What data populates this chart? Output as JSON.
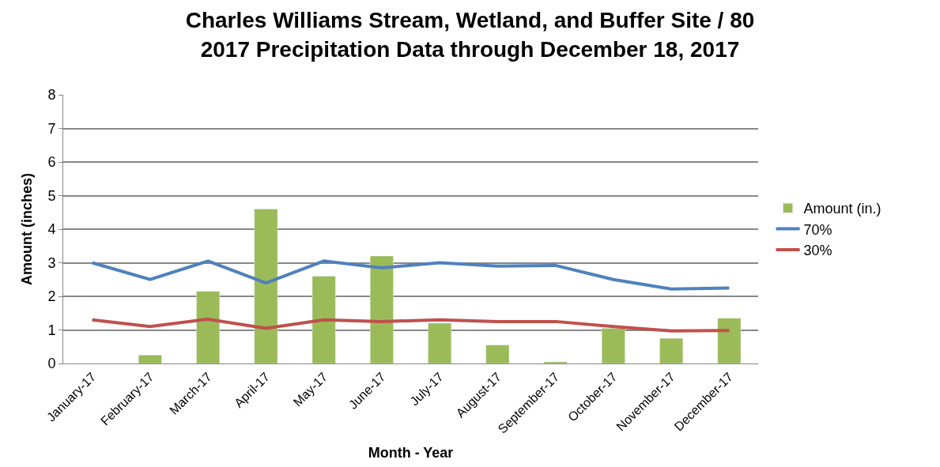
{
  "chart_data": {
    "type": "bar",
    "title": "Charles Williams Stream, Wetland, and Buffer Site / 80\n2017 Precipitation Data through December 18, 2017",
    "xlabel": "Month - Year",
    "ylabel": "Amount (inches)",
    "categories": [
      "January-17",
      "February-17",
      "March-17",
      "April-17",
      "May-17",
      "June-17",
      "July-17",
      "August-17",
      "September-17",
      "October-17",
      "November-17",
      "December-17"
    ],
    "series": [
      {
        "name": "Amount (in.)",
        "color": "#9bbb59",
        "values": [
          null,
          0.25,
          2.15,
          4.6,
          2.6,
          3.2,
          1.2,
          0.55,
          0.05,
          1.05,
          0.75,
          1.35
        ]
      },
      {
        "name": "70%",
        "type": "line",
        "color": "#4f81bd",
        "values": [
          3.0,
          2.5,
          3.05,
          2.4,
          3.05,
          2.85,
          3.0,
          2.9,
          2.92,
          2.5,
          2.22,
          2.25
        ]
      },
      {
        "name": "30%",
        "type": "line",
        "color": "#c0504d",
        "values": [
          1.3,
          1.1,
          1.32,
          1.05,
          1.3,
          1.25,
          1.3,
          1.25,
          1.25,
          1.1,
          0.97,
          0.98
        ]
      }
    ],
    "ylim": [
      0,
      8
    ],
    "yticks": [
      0,
      1,
      2,
      3,
      4,
      5,
      6,
      7,
      8
    ],
    "grid": "y",
    "legend": "right",
    "marker": "none",
    "line_style": "solid"
  }
}
